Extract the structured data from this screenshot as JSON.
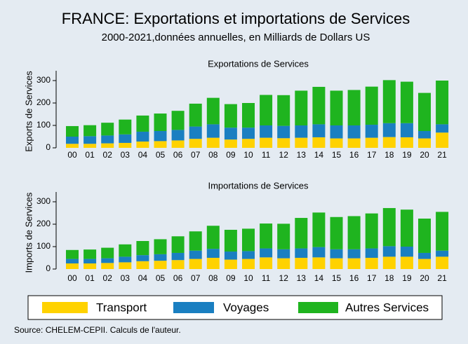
{
  "title": "FRANCE: Exportations  et importations de Services",
  "subtitle": "2000-2021,données annuelles,  en Milliards de Dollars US",
  "source": "Source: CHELEM-CEPII. Calculs de l'auteur.",
  "chart_data": [
    {
      "type": "bar",
      "stacked": true,
      "title": "Exportations de Services",
      "ylabel": "Exports de Services",
      "categories": [
        "00",
        "01",
        "02",
        "03",
        "04",
        "05",
        "06",
        "07",
        "08",
        "09",
        "10",
        "11",
        "12",
        "13",
        "14",
        "15",
        "16",
        "17",
        "18",
        "19",
        "20",
        "21"
      ],
      "series": [
        {
          "name": "Transport",
          "color": "#ffd200",
          "values": [
            18,
            18,
            20,
            22,
            28,
            30,
            33,
            40,
            45,
            37,
            40,
            45,
            43,
            45,
            47,
            42,
            42,
            45,
            48,
            47,
            42,
            68
          ]
        },
        {
          "name": "Voyages",
          "color": "#1a7fc1",
          "values": [
            32,
            34,
            35,
            38,
            44,
            45,
            47,
            55,
            60,
            53,
            50,
            55,
            55,
            55,
            58,
            58,
            58,
            58,
            62,
            63,
            33,
            37
          ]
        },
        {
          "name": "Autres Services",
          "color": "#1fb41f",
          "values": [
            47,
            49,
            57,
            66,
            72,
            78,
            85,
            102,
            118,
            105,
            110,
            136,
            137,
            155,
            167,
            155,
            158,
            170,
            192,
            185,
            170,
            195
          ]
        }
      ],
      "ylim": [
        0,
        300
      ],
      "yticks": [
        0,
        100,
        200,
        300
      ]
    },
    {
      "type": "bar",
      "stacked": true,
      "title": "Importations de Services",
      "ylabel": "Imports de Services",
      "categories": [
        "00",
        "01",
        "02",
        "03",
        "04",
        "05",
        "06",
        "07",
        "08",
        "09",
        "10",
        "11",
        "12",
        "13",
        "14",
        "15",
        "16",
        "17",
        "18",
        "19",
        "20",
        "21"
      ],
      "series": [
        {
          "color": "#ffd200",
          "values": [
            25,
            25,
            27,
            30,
            35,
            37,
            40,
            45,
            50,
            42,
            45,
            52,
            48,
            50,
            52,
            48,
            48,
            50,
            55,
            55,
            45,
            55
          ]
        },
        {
          "color": "#1a7fc1",
          "values": [
            20,
            20,
            21,
            25,
            27,
            29,
            32,
            37,
            40,
            36,
            35,
            40,
            40,
            42,
            46,
            40,
            40,
            42,
            47,
            45,
            27,
            27
          ]
        },
        {
          "color": "#1fb41f",
          "values": [
            40,
            42,
            47,
            55,
            63,
            67,
            74,
            86,
            103,
            97,
            100,
            111,
            114,
            136,
            154,
            144,
            148,
            156,
            170,
            165,
            153,
            173
          ]
        }
      ],
      "ylim": [
        0,
        300
      ],
      "yticks": [
        0,
        100,
        200,
        300
      ]
    }
  ]
}
